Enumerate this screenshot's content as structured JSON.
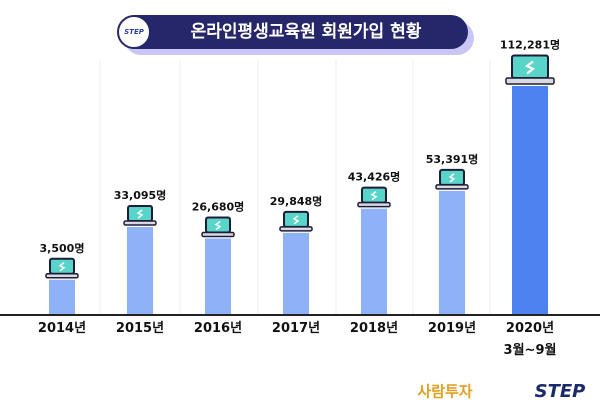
{
  "chart_data": {
    "type": "bar",
    "title": "온라인평생교육원 회원가입 현황",
    "badge": "STEP",
    "categories": [
      "2014년",
      "2015년",
      "2016년",
      "2017년",
      "2018년",
      "2019년",
      "2020년\n3월~9월"
    ],
    "values": [
      3500,
      33095,
      26680,
      29848,
      43426,
      53391,
      112281
    ],
    "value_labels": [
      "3,500명",
      "33,095명",
      "26,680명",
      "29,848명",
      "43,426명",
      "53,391명",
      "112,281명"
    ],
    "colors": [
      "#8fb1f8",
      "#8fb1f8",
      "#8fb1f8",
      "#8fb1f8",
      "#8fb1f8",
      "#8fb1f8",
      "#4d82f0"
    ]
  },
  "footer": {
    "logos": [
      "사람투자",
      "STEP"
    ]
  }
}
